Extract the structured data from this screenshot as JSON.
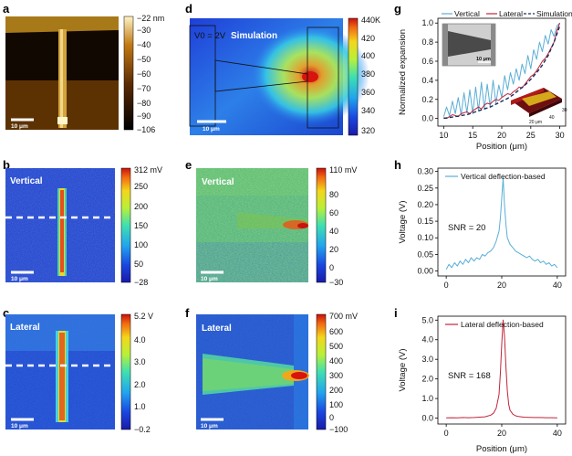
{
  "panels": {
    "a": {
      "letter": "a",
      "scalebar": "10 μm",
      "colorbar": {
        "unit_label": "−22 nm",
        "ticks": [
          "−30",
          "−40",
          "−50",
          "−60",
          "−70",
          "−80",
          "−90",
          "−106"
        ]
      }
    },
    "b": {
      "letter": "b",
      "label": "Vertical",
      "scalebar": "10 μm",
      "colorbar": {
        "top_label": "312 mV",
        "ticks": [
          "250",
          "200",
          "150",
          "100",
          "50",
          "−28"
        ]
      }
    },
    "c": {
      "letter": "c",
      "label": "Lateral",
      "scalebar": "10 μm",
      "colorbar": {
        "top_label": "5.2 V",
        "ticks": [
          "4.0",
          "3.0",
          "2.0",
          "1.0",
          "−0.2"
        ]
      }
    },
    "d": {
      "letter": "d",
      "voltage_label": "V0 = 2V",
      "label": "Simulation",
      "scalebar": "10 μm",
      "colorbar": {
        "top_label": "440K",
        "ticks": [
          "420",
          "400",
          "380",
          "360",
          "340",
          "320"
        ]
      }
    },
    "e": {
      "letter": "e",
      "label": "Vertical",
      "scalebar": "10 μm",
      "colorbar": {
        "top_label": "110 mV",
        "ticks": [
          "80",
          "60",
          "40",
          "20",
          "0",
          "−30"
        ]
      }
    },
    "f": {
      "letter": "f",
      "label": "Lateral",
      "scalebar": "10 μm",
      "colorbar": {
        "top_label": "700 mV",
        "ticks": [
          "600",
          "500",
          "400",
          "300",
          "200",
          "100",
          "0",
          "−100"
        ]
      }
    },
    "g": {
      "letter": "g",
      "inset_scalebar": "10 μm",
      "inset3d_axes": [
        "20 μm",
        "40",
        "30"
      ]
    },
    "h": {
      "letter": "h",
      "annotation": "SNR = 20"
    },
    "i": {
      "letter": "i",
      "annotation": "SNR = 168"
    }
  },
  "chart_data": [
    {
      "id": "g",
      "type": "line",
      "title": "",
      "xlabel": "Position (μm)",
      "ylabel": "Normalized expansion",
      "xlim": [
        9,
        31
      ],
      "ylim": [
        -0.08,
        1.05
      ],
      "xticks": [
        "10",
        "15",
        "20",
        "25",
        "30"
      ],
      "yticks": [
        "0.0",
        "0.2",
        "0.4",
        "0.6",
        "0.8",
        "1.0"
      ],
      "legend": [
        "Vertical",
        "Lateral",
        "Simulation"
      ],
      "series": [
        {
          "name": "Vertical",
          "color": "#5aaed6",
          "x": [
            10,
            10.5,
            11,
            11.5,
            12,
            12.5,
            13,
            13.5,
            14,
            14.5,
            15,
            15.5,
            16,
            16.5,
            17,
            17.5,
            18,
            18.5,
            19,
            19.5,
            20,
            20.5,
            21,
            21.5,
            22,
            22.5,
            23,
            23.5,
            24,
            24.5,
            25,
            25.5,
            26,
            26.5,
            27,
            27.5,
            28,
            28.5,
            29,
            29.5,
            30
          ],
          "y": [
            0.02,
            0.12,
            0.03,
            0.18,
            0.05,
            0.22,
            0.04,
            0.27,
            0.06,
            0.3,
            0.05,
            0.33,
            0.08,
            0.38,
            0.1,
            0.36,
            0.12,
            0.4,
            0.16,
            0.35,
            0.22,
            0.45,
            0.3,
            0.48,
            0.36,
            0.52,
            0.4,
            0.57,
            0.47,
            0.66,
            0.52,
            0.72,
            0.62,
            0.8,
            0.7,
            0.87,
            0.78,
            0.93,
            0.86,
            0.97,
            1.0
          ]
        },
        {
          "name": "Lateral",
          "color": "#c0243a",
          "x": [
            10,
            10.5,
            11,
            11.5,
            12,
            12.5,
            13,
            13.5,
            14,
            14.5,
            15,
            15.5,
            16,
            16.5,
            17,
            17.5,
            18,
            18.5,
            19,
            19.5,
            20,
            20.5,
            21,
            21.5,
            22,
            22.5,
            23,
            23.5,
            24,
            24.5,
            25,
            25.5,
            26,
            26.5,
            27,
            27.5,
            28,
            28.5,
            29,
            29.5,
            30
          ],
          "y": [
            0.01,
            0.0,
            0.02,
            0.04,
            0.03,
            0.02,
            0.05,
            0.06,
            0.07,
            0.05,
            0.08,
            0.1,
            0.12,
            0.1,
            0.14,
            0.16,
            0.15,
            0.18,
            0.2,
            0.19,
            0.22,
            0.24,
            0.26,
            0.25,
            0.28,
            0.3,
            0.33,
            0.32,
            0.36,
            0.4,
            0.44,
            0.46,
            0.5,
            0.55,
            0.6,
            0.63,
            0.68,
            0.74,
            0.8,
            0.92,
            1.0
          ]
        },
        {
          "name": "Simulation",
          "color": "#1b2d5a",
          "dashed": true,
          "x": [
            10,
            11,
            12,
            13,
            14,
            15,
            16,
            17,
            18,
            19,
            20,
            21,
            22,
            23,
            24,
            25,
            26,
            27,
            28,
            29,
            30
          ],
          "y": [
            0.0,
            0.01,
            0.02,
            0.03,
            0.04,
            0.06,
            0.08,
            0.1,
            0.12,
            0.15,
            0.18,
            0.21,
            0.25,
            0.3,
            0.35,
            0.41,
            0.48,
            0.56,
            0.66,
            0.8,
            0.97
          ]
        }
      ]
    },
    {
      "id": "h",
      "type": "line",
      "title": "",
      "xlabel": "",
      "ylabel": "Voltage (V)",
      "xlim": [
        -3,
        43
      ],
      "ylim": [
        -0.015,
        0.31
      ],
      "xticks": [
        "0",
        "20",
        "40"
      ],
      "yticks": [
        "0.00",
        "0.05",
        "0.10",
        "0.15",
        "0.20",
        "0.25",
        "0.30"
      ],
      "legend": [
        "Vertical deflection-based"
      ],
      "series": [
        {
          "name": "Vertical deflection-based",
          "color": "#5aaed6",
          "x": [
            0,
            1,
            2,
            3,
            4,
            5,
            6,
            7,
            8,
            9,
            10,
            11,
            12,
            13,
            14,
            15,
            16,
            17,
            18,
            19,
            19.5,
            20,
            20.5,
            21,
            21.5,
            22,
            23,
            24,
            25,
            26,
            27,
            28,
            29,
            30,
            31,
            32,
            33,
            34,
            35,
            36,
            37,
            38,
            39,
            40
          ],
          "y": [
            0.005,
            0.02,
            0.01,
            0.025,
            0.015,
            0.03,
            0.02,
            0.035,
            0.025,
            0.04,
            0.03,
            0.04,
            0.035,
            0.05,
            0.045,
            0.055,
            0.06,
            0.07,
            0.09,
            0.12,
            0.16,
            0.22,
            0.28,
            0.2,
            0.14,
            0.1,
            0.08,
            0.07,
            0.06,
            0.055,
            0.05,
            0.045,
            0.04,
            0.045,
            0.035,
            0.03,
            0.035,
            0.025,
            0.03,
            0.02,
            0.025,
            0.015,
            0.02,
            0.01
          ]
        }
      ]
    },
    {
      "id": "i",
      "type": "line",
      "title": "",
      "xlabel": "Position (μm)",
      "ylabel": "Voltage (V)",
      "xlim": [
        -3,
        43
      ],
      "ylim": [
        -0.3,
        5.2
      ],
      "xticks": [
        "0",
        "20",
        "40"
      ],
      "yticks": [
        "0.0",
        "1.0",
        "2.0",
        "3.0",
        "4.0",
        "5.0"
      ],
      "legend": [
        "Lateral deflection-based"
      ],
      "series": [
        {
          "name": "Lateral deflection-based",
          "color": "#c0243a",
          "x": [
            0,
            2,
            4,
            6,
            8,
            10,
            12,
            14,
            16,
            17,
            18,
            19,
            19.5,
            20,
            20.5,
            21,
            21.5,
            22,
            22.5,
            23,
            24,
            25,
            26,
            28,
            30,
            32,
            34,
            36,
            38,
            40
          ],
          "y": [
            0.01,
            0.02,
            0.01,
            0.03,
            0.02,
            0.03,
            0.05,
            0.07,
            0.15,
            0.25,
            0.5,
            1.2,
            2.3,
            3.8,
            5.0,
            4.2,
            2.6,
            1.4,
            0.7,
            0.4,
            0.2,
            0.12,
            0.08,
            0.05,
            0.04,
            0.03,
            0.03,
            0.02,
            0.02,
            0.01
          ]
        }
      ]
    }
  ]
}
